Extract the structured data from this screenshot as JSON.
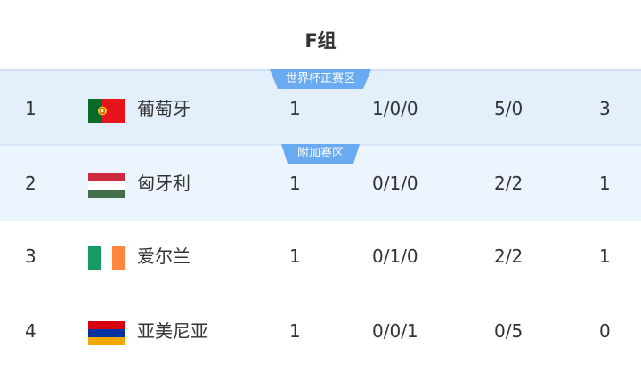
{
  "title": "F组",
  "rows": [
    {
      "rank": "1",
      "team": "葡萄牙",
      "flag": "portugal-flag",
      "played": "1",
      "wdl": "1/0/0",
      "goals": "5/0",
      "points": "3",
      "zone": "世界杯正赛区"
    },
    {
      "rank": "2",
      "team": "匈牙利",
      "flag": "hungary-flag",
      "played": "1",
      "wdl": "0/1/0",
      "goals": "2/2",
      "points": "1",
      "zone": "附加赛区"
    },
    {
      "rank": "3",
      "team": "爱尔兰",
      "flag": "ireland-flag",
      "played": "1",
      "wdl": "0/1/0",
      "goals": "2/2",
      "points": "1"
    },
    {
      "rank": "4",
      "team": "亚美尼亚",
      "flag": "armenia-flag",
      "played": "1",
      "wdl": "0/0/1",
      "goals": "0/5",
      "points": "0"
    }
  ],
  "colors": {
    "badge": "#6aaaf0",
    "qualified_row": "#e4effc",
    "playoff_row": "#ecf4fe"
  }
}
